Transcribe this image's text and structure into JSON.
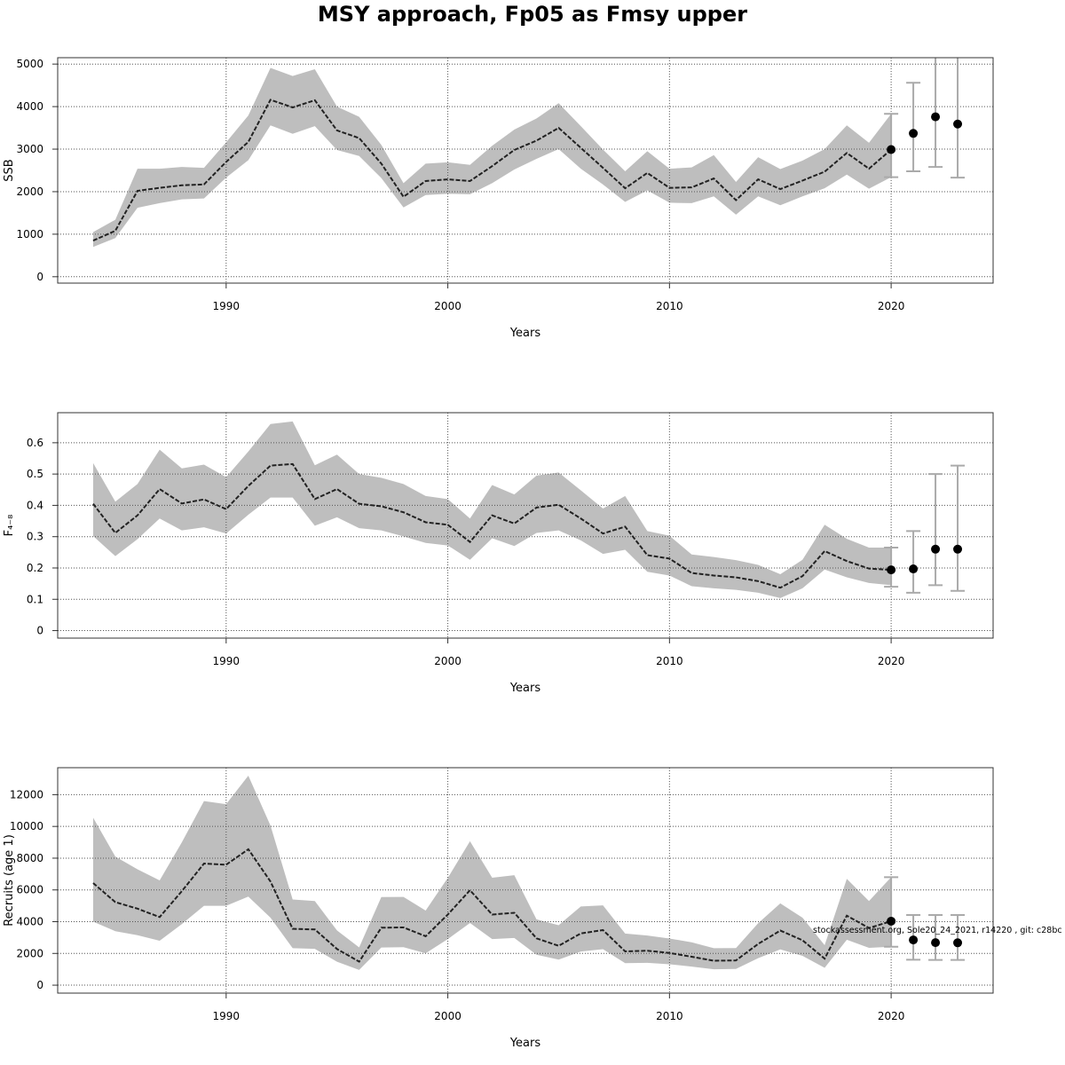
{
  "title": "MSY approach, Fp05 as Fmsy upper",
  "footnote": "stockassessment.org, Sole20_24_2021, r14220 , git: c28bc",
  "style": {
    "band_color": "#bebebe",
    "line_color": "#222222",
    "grid_color": "#555555",
    "errorbar_color": "#aaaaaa"
  },
  "chart_data": [
    {
      "type": "line",
      "ylabel": "SSB",
      "xlabel": "Years",
      "xlim": [
        1982.4,
        2024.6
      ],
      "ylim": [
        -150,
        5150
      ],
      "xticks": [
        1990,
        2000,
        2010,
        2020
      ],
      "yticks": [
        0,
        1000,
        2000,
        3000,
        4000,
        5000
      ],
      "grid": true,
      "x": [
        1984,
        1985,
        1986,
        1987,
        1988,
        1989,
        1990,
        1991,
        1992,
        1993,
        1994,
        1995,
        1996,
        1997,
        1998,
        1999,
        2000,
        2001,
        2002,
        2003,
        2004,
        2005,
        2006,
        2007,
        2008,
        2009,
        2010,
        2011,
        2012,
        2013,
        2014,
        2015,
        2016,
        2017,
        2018,
        2019,
        2020
      ],
      "estimate": [
        850,
        1080,
        2020,
        2090,
        2150,
        2170,
        2700,
        3170,
        4160,
        3980,
        4150,
        3440,
        3260,
        2660,
        1880,
        2250,
        2290,
        2250,
        2600,
        2980,
        3200,
        3500,
        3030,
        2560,
        2080,
        2440,
        2090,
        2100,
        2310,
        1800,
        2290,
        2060,
        2260,
        2470,
        2910,
        2540,
        2990
      ],
      "lower": [
        700,
        910,
        1620,
        1730,
        1820,
        1840,
        2330,
        2740,
        3560,
        3360,
        3540,
        2980,
        2840,
        2320,
        1630,
        1920,
        1950,
        1940,
        2200,
        2520,
        2770,
        3000,
        2540,
        2170,
        1760,
        2030,
        1740,
        1730,
        1890,
        1460,
        1890,
        1680,
        1890,
        2080,
        2400,
        2070,
        2340
      ],
      "upper": [
        1050,
        1340,
        2540,
        2540,
        2580,
        2560,
        3160,
        3790,
        4910,
        4720,
        4880,
        4000,
        3760,
        3100,
        2200,
        2660,
        2690,
        2630,
        3080,
        3460,
        3720,
        4080,
        3540,
        2990,
        2480,
        2950,
        2540,
        2570,
        2860,
        2230,
        2810,
        2530,
        2730,
        3000,
        3560,
        3150,
        3830
      ],
      "forecast": {
        "x": [
          2020,
          2021,
          2022,
          2023
        ],
        "median": [
          2990,
          3370,
          3760,
          3590
        ],
        "low": [
          2340,
          2480,
          2580,
          2330
        ],
        "high": [
          3830,
          4560,
          5700,
          6000
        ]
      }
    },
    {
      "type": "line",
      "ylabel": "F₄₋₈",
      "xlabel": "Years",
      "xlim": [
        1982.4,
        2024.6
      ],
      "ylim": [
        -0.024,
        0.696
      ],
      "xticks": [
        1990,
        2000,
        2010,
        2020
      ],
      "yticks": [
        0.0,
        0.1,
        0.2,
        0.3,
        0.4,
        0.5,
        0.6
      ],
      "grid": true,
      "x": [
        1984,
        1985,
        1986,
        1987,
        1988,
        1989,
        1990,
        1991,
        1992,
        1993,
        1994,
        1995,
        1996,
        1997,
        1998,
        1999,
        2000,
        2001,
        2002,
        2003,
        2004,
        2005,
        2006,
        2007,
        2008,
        2009,
        2010,
        2011,
        2012,
        2013,
        2014,
        2015,
        2016,
        2017,
        2018,
        2019,
        2020
      ],
      "estimate": [
        0.405,
        0.312,
        0.368,
        0.452,
        0.406,
        0.419,
        0.388,
        0.462,
        0.527,
        0.532,
        0.42,
        0.452,
        0.405,
        0.397,
        0.378,
        0.346,
        0.338,
        0.283,
        0.368,
        0.342,
        0.393,
        0.402,
        0.358,
        0.31,
        0.332,
        0.241,
        0.23,
        0.184,
        0.176,
        0.17,
        0.158,
        0.137,
        0.174,
        0.254,
        0.222,
        0.198,
        0.194
      ],
      "lower": [
        0.302,
        0.238,
        0.292,
        0.358,
        0.32,
        0.33,
        0.31,
        0.37,
        0.425,
        0.425,
        0.335,
        0.362,
        0.327,
        0.32,
        0.301,
        0.28,
        0.272,
        0.226,
        0.295,
        0.27,
        0.312,
        0.32,
        0.288,
        0.245,
        0.258,
        0.188,
        0.176,
        0.142,
        0.135,
        0.13,
        0.121,
        0.104,
        0.135,
        0.195,
        0.17,
        0.152,
        0.145
      ],
      "upper": [
        0.535,
        0.412,
        0.468,
        0.578,
        0.518,
        0.53,
        0.49,
        0.572,
        0.66,
        0.668,
        0.528,
        0.562,
        0.5,
        0.488,
        0.468,
        0.43,
        0.42,
        0.358,
        0.465,
        0.435,
        0.495,
        0.505,
        0.448,
        0.39,
        0.43,
        0.318,
        0.303,
        0.243,
        0.235,
        0.225,
        0.21,
        0.18,
        0.226,
        0.338,
        0.293,
        0.265,
        0.265
      ],
      "forecast": {
        "x": [
          2020,
          2021,
          2022,
          2023
        ],
        "median": [
          0.194,
          0.197,
          0.26,
          0.26
        ],
        "low": [
          0.14,
          0.121,
          0.145,
          0.127
        ],
        "high": [
          0.265,
          0.318,
          0.5,
          0.527
        ]
      }
    },
    {
      "type": "line",
      "ylabel": "Recruits (age 1)",
      "xlabel": "Years",
      "xlim": [
        1982.4,
        2024.6
      ],
      "ylim": [
        -500,
        13700
      ],
      "xticks": [
        1990,
        2000,
        2010,
        2020
      ],
      "yticks": [
        0,
        2000,
        4000,
        6000,
        8000,
        10000,
        12000
      ],
      "grid": true,
      "x": [
        1984,
        1985,
        1986,
        1987,
        1988,
        1989,
        1990,
        1991,
        1992,
        1993,
        1994,
        1995,
        1996,
        1997,
        1998,
        1999,
        2000,
        2001,
        2002,
        2003,
        2004,
        2005,
        2006,
        2007,
        2008,
        2009,
        2010,
        2011,
        2012,
        2013,
        2014,
        2015,
        2016,
        2017,
        2018,
        2019,
        2020
      ],
      "estimate": [
        6430,
        5230,
        4820,
        4290,
        5920,
        7660,
        7590,
        8560,
        6530,
        3550,
        3510,
        2280,
        1480,
        3620,
        3640,
        3080,
        4450,
        5980,
        4450,
        4560,
        2950,
        2480,
        3260,
        3470,
        2130,
        2170,
        2030,
        1790,
        1540,
        1560,
        2600,
        3440,
        2830,
        1670,
        4380,
        3600,
        4030
      ],
      "lower": [
        4000,
        3400,
        3150,
        2800,
        3850,
        5000,
        5000,
        5580,
        4250,
        2330,
        2290,
        1480,
        960,
        2370,
        2390,
        2010,
        2900,
        3920,
        2900,
        2970,
        1920,
        1610,
        2120,
        2270,
        1390,
        1410,
        1320,
        1170,
        1000,
        1020,
        1700,
        2250,
        1850,
        1090,
        2860,
        2350,
        2420
      ],
      "upper": [
        10550,
        8100,
        7300,
        6600,
        9000,
        11600,
        11400,
        13200,
        10050,
        5400,
        5300,
        3450,
        2380,
        5550,
        5560,
        4700,
        6760,
        9070,
        6770,
        6930,
        4150,
        3780,
        4960,
        5030,
        3250,
        3130,
        2940,
        2700,
        2330,
        2340,
        3900,
        5150,
        4250,
        2520,
        6700,
        5300,
        6800
      ],
      "forecast": {
        "x": [
          2020,
          2021,
          2022,
          2023
        ],
        "median": [
          4030,
          2850,
          2680,
          2670
        ],
        "low": [
          2420,
          1600,
          1590,
          1590
        ],
        "high": [
          6800,
          4420,
          4420,
          4420
        ]
      }
    }
  ]
}
